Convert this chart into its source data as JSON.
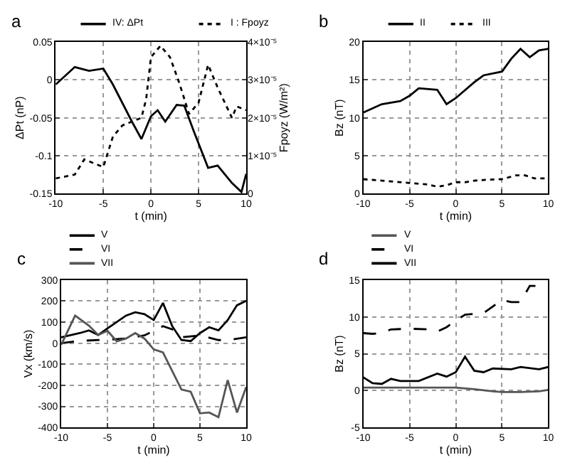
{
  "chart_data": [
    {
      "type": "line",
      "title": "a",
      "xlabel": "t (min)",
      "ylabel": "ΔPt (nP)",
      "y2label": "Fpoyz (W/m²)",
      "xlim": [
        -10,
        10
      ],
      "xticks": [
        -10,
        -5,
        0,
        5,
        10
      ],
      "ylim": [
        -0.15,
        0.05
      ],
      "yticks": [
        -0.15,
        -0.1,
        -0.05,
        0,
        0.05
      ],
      "y2lim": [
        0,
        4e-05
      ],
      "y2ticks": [
        {
          "value": 0,
          "label": "0"
        },
        {
          "value": 1e-05,
          "label": "1×10⁻⁵"
        },
        {
          "value": 2e-05,
          "label": "2×10⁻⁵"
        },
        {
          "value": 3e-05,
          "label": "3×10⁻⁵"
        },
        {
          "value": 4e-05,
          "label": "4×10⁻⁵"
        }
      ],
      "grid": true,
      "legend": "top",
      "marker": "none",
      "series": [
        {
          "name": "IV: ΔPt",
          "color": "#000000",
          "line_style": "solid",
          "x": [
            -10,
            -8,
            -6.5,
            -5,
            -4,
            -2,
            -1,
            0,
            0.7,
            1.5,
            2.7,
            3.5,
            4.5,
            6,
            7,
            8.5,
            9.5,
            10
          ],
          "values": [
            -0.006,
            0.017,
            0.012,
            0.015,
            -0.006,
            -0.055,
            -0.078,
            -0.048,
            -0.04,
            -0.055,
            -0.033,
            -0.034,
            -0.068,
            -0.116,
            -0.113,
            -0.136,
            -0.148,
            -0.124
          ]
        },
        {
          "name": "I : Fpoyz",
          "color": "#000000",
          "line_style": "dotted",
          "axis": "y2",
          "x": [
            -10,
            -8,
            -7,
            -6,
            -5,
            -4,
            -3,
            -1,
            -0.5,
            0,
            1,
            2,
            3,
            4,
            5,
            6,
            7,
            8.5,
            9,
            10
          ],
          "values": [
            4e-06,
            5e-06,
            9e-06,
            8e-06,
            7e-06,
            1.5e-05,
            1.8e-05,
            2e-05,
            2.5e-05,
            3.6e-05,
            3.9e-05,
            3.6e-05,
            2.9e-05,
            2.1e-05,
            2.4e-05,
            3.4e-05,
            2.8e-05,
            2e-05,
            2.3e-05,
            2.2e-05
          ]
        }
      ]
    },
    {
      "type": "line",
      "title": "b",
      "xlabel": "t (min)",
      "ylabel": "Bz (nT)",
      "xlim": [
        -10,
        10
      ],
      "xticks": [
        -10,
        -5,
        0,
        5,
        10
      ],
      "ylim": [
        0,
        20
      ],
      "yticks": [
        0,
        5,
        10,
        15,
        20
      ],
      "grid": true,
      "legend": "top",
      "marker": "none",
      "series": [
        {
          "name": "II",
          "color": "#000000",
          "line_style": "solid",
          "x": [
            -10,
            -8,
            -6,
            -5,
            -4,
            -2,
            -1,
            0,
            2,
            3,
            5,
            6,
            7,
            8,
            9,
            10
          ],
          "values": [
            10.7,
            11.8,
            12.2,
            12.9,
            13.9,
            13.7,
            11.8,
            12.6,
            14.7,
            15.6,
            16.1,
            17.8,
            19.1,
            18.0,
            18.9,
            19.1
          ]
        },
        {
          "name": "III",
          "color": "#000000",
          "line_style": "dotted",
          "x": [
            -10,
            -5,
            -3,
            -2,
            -1,
            0,
            1,
            2,
            3,
            5,
            6.5,
            7.5,
            8.5,
            10
          ],
          "values": [
            1.9,
            1.4,
            1.2,
            0.9,
            1.1,
            1.5,
            1.5,
            1.7,
            1.8,
            1.9,
            2.4,
            2.4,
            2.0,
            2.0
          ]
        }
      ]
    },
    {
      "type": "line",
      "title": "c",
      "xlabel": "t (min)",
      "ylabel": "Vx (km/s)",
      "xlim": [
        -10,
        10
      ],
      "xticks": [
        -10,
        -5,
        0,
        5,
        10
      ],
      "ylim": [
        -400,
        300
      ],
      "yticks": [
        -400,
        -300,
        -200,
        -100,
        0,
        100,
        200,
        300
      ],
      "grid": true,
      "legend": "top",
      "marker": "none",
      "series": [
        {
          "name": "V",
          "color": "#000000",
          "line_style": "solid",
          "x": [
            -10,
            -8,
            -7,
            -6,
            -5,
            -3,
            -2,
            -1,
            0,
            1,
            2,
            3,
            4,
            5,
            6,
            7,
            8,
            9,
            10
          ],
          "values": [
            28,
            48,
            61,
            39,
            70,
            131,
            147,
            138,
            110,
            191,
            81,
            15,
            10,
            48,
            76,
            61,
            110,
            180,
            202
          ]
        },
        {
          "name": "VI",
          "color": "#000000",
          "line_style": "dashed",
          "x": [
            -10,
            -8,
            -5,
            -3,
            -1,
            1,
            2,
            3,
            5,
            7,
            8,
            10
          ],
          "values": [
            0,
            11,
            17,
            22,
            37,
            81,
            66,
            28,
            37,
            15,
            15,
            28
          ]
        },
        {
          "name": "VII",
          "color": "#555555",
          "line_style": "solid",
          "x": [
            -10,
            -8.5,
            -7,
            -6,
            -5,
            -4,
            -3,
            -2,
            -1,
            0,
            1,
            2,
            3,
            4,
            5,
            6,
            7,
            8,
            9,
            10
          ],
          "values": [
            -7,
            131,
            83,
            39,
            59,
            9,
            22,
            48,
            22,
            -29,
            -44,
            -132,
            -220,
            -230,
            -333,
            -329,
            -351,
            -175,
            -329,
            -208
          ]
        }
      ]
    },
    {
      "type": "line",
      "title": "d",
      "xlabel": "t (min)",
      "ylabel": "Bz (nT)",
      "xlim": [
        -10,
        10
      ],
      "xticks": [
        -10,
        -5,
        0,
        5,
        10
      ],
      "ylim": [
        -5,
        15
      ],
      "yticks": [
        -5,
        0,
        5,
        10,
        15
      ],
      "grid": true,
      "legend": "top",
      "marker": "none",
      "series": [
        {
          "name": "V",
          "color": "#555555",
          "line_style": "solid",
          "x": [
            -10,
            -5,
            0,
            2,
            4,
            5,
            7,
            9,
            10
          ],
          "values": [
            0.4,
            0.4,
            0.4,
            0.2,
            -0.1,
            -0.2,
            -0.2,
            -0.1,
            0.1
          ]
        },
        {
          "name": "VI",
          "color": "#000000",
          "line_style": "dashed",
          "x": [
            -10,
            -9,
            -8,
            -7,
            -5,
            -3,
            -2,
            -1,
            0,
            1,
            3,
            4,
            5,
            6,
            7,
            8,
            9,
            10
          ],
          "values": [
            7.8,
            7.7,
            7.8,
            8.3,
            8.4,
            8.3,
            8.0,
            8.6,
            9.5,
            10.3,
            10.5,
            11.4,
            12.3,
            12.0,
            12.0,
            14.2,
            14.2,
            14.1
          ]
        },
        {
          "name": "VII",
          "color": "#000000",
          "line_style": "solid",
          "x": [
            -10,
            -9,
            -8,
            -7,
            -6,
            -4,
            -2,
            -1,
            0,
            1,
            2,
            3,
            4,
            6,
            7,
            9,
            10
          ],
          "values": [
            1.8,
            1.0,
            0.9,
            1.6,
            1.3,
            1.3,
            2.3,
            1.9,
            2.5,
            4.6,
            2.7,
            2.5,
            3.0,
            2.9,
            3.2,
            2.9,
            3.2
          ]
        }
      ]
    }
  ]
}
